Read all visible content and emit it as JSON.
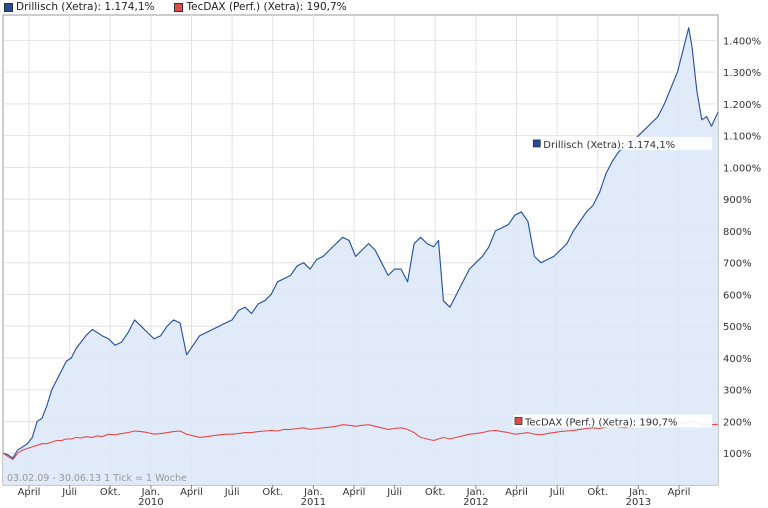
{
  "legend": [
    {
      "label": "Drillisch (Xetra): 1.174,1%",
      "color": "#1f4e9e"
    },
    {
      "label": "TecDAX (Perf.) (Xetra): 190,7%",
      "color": "#e34b4b"
    }
  ],
  "footer": {
    "range": "03.02.09 - 30.06.13",
    "tick": "1 Tick = 1 Woche"
  },
  "chart_data": {
    "type": "area",
    "title": "",
    "xlabel": "",
    "ylabel": "",
    "ylim": [
      0,
      1480
    ],
    "xlim": [
      2009.09,
      2013.49
    ],
    "yticks": [
      100,
      200,
      300,
      400,
      500,
      600,
      700,
      800,
      900,
      1000,
      1100,
      1200,
      1300,
      1400
    ],
    "ytick_labels": [
      "100%",
      "200%",
      "300%",
      "400%",
      "500%",
      "600%",
      "700%",
      "800%",
      "900%",
      "1.000%",
      "1.100%",
      "1.200%",
      "1.300%",
      "1.400%"
    ],
    "xticks": [
      {
        "x": 2009.25,
        "label": "April"
      },
      {
        "x": 2009.5,
        "label": "Juli"
      },
      {
        "x": 2009.75,
        "label": "Okt."
      },
      {
        "x": 2010.0,
        "label": "Jan.",
        "year": "2010"
      },
      {
        "x": 2010.25,
        "label": "April"
      },
      {
        "x": 2010.5,
        "label": "Juli"
      },
      {
        "x": 2010.75,
        "label": "Okt."
      },
      {
        "x": 2011.0,
        "label": "Jan.",
        "year": "2011"
      },
      {
        "x": 2011.25,
        "label": "April"
      },
      {
        "x": 2011.5,
        "label": "Juli"
      },
      {
        "x": 2011.75,
        "label": "Okt."
      },
      {
        "x": 2012.0,
        "label": "Jan.",
        "year": "2012"
      },
      {
        "x": 2012.25,
        "label": "April"
      },
      {
        "x": 2012.5,
        "label": "Juli"
      },
      {
        "x": 2012.75,
        "label": "Okt."
      },
      {
        "x": 2013.0,
        "label": "Jan.",
        "year": "2013"
      },
      {
        "x": 2013.25,
        "label": "April"
      }
    ],
    "grid": true,
    "series": [
      {
        "name": "Drillisch (Xetra)",
        "label": "Drillisch (Xetra): 1.174,1%",
        "color": "#1f4e9e",
        "fill": "#dde8f8",
        "x": [
          2009.09,
          2009.12,
          2009.15,
          2009.18,
          2009.21,
          2009.24,
          2009.27,
          2009.3,
          2009.33,
          2009.36,
          2009.39,
          2009.42,
          2009.45,
          2009.48,
          2009.51,
          2009.54,
          2009.57,
          2009.6,
          2009.64,
          2009.67,
          2009.7,
          2009.74,
          2009.78,
          2009.82,
          2009.86,
          2009.9,
          2009.94,
          2009.98,
          2010.02,
          2010.06,
          2010.1,
          2010.14,
          2010.18,
          2010.22,
          2010.26,
          2010.3,
          2010.34,
          2010.38,
          2010.42,
          2010.46,
          2010.5,
          2010.54,
          2010.58,
          2010.62,
          2010.66,
          2010.7,
          2010.74,
          2010.78,
          2010.82,
          2010.86,
          2010.9,
          2010.94,
          2010.98,
          2011.02,
          2011.06,
          2011.1,
          2011.14,
          2011.18,
          2011.22,
          2011.26,
          2011.3,
          2011.34,
          2011.38,
          2011.42,
          2011.46,
          2011.5,
          2011.54,
          2011.58,
          2011.62,
          2011.66,
          2011.7,
          2011.74,
          2011.77,
          2011.8,
          2011.84,
          2011.88,
          2011.92,
          2011.96,
          2012.0,
          2012.04,
          2012.08,
          2012.12,
          2012.16,
          2012.2,
          2012.24,
          2012.28,
          2012.32,
          2012.36,
          2012.4,
          2012.44,
          2012.48,
          2012.52,
          2012.56,
          2012.6,
          2012.64,
          2012.68,
          2012.72,
          2012.76,
          2012.8,
          2012.84,
          2012.88,
          2012.92,
          2012.96,
          2013.0,
          2013.04,
          2013.08,
          2013.12,
          2013.16,
          2013.2,
          2013.24,
          2013.28,
          2013.31,
          2013.33,
          2013.36,
          2013.39,
          2013.42,
          2013.45,
          2013.49
        ],
        "values": [
          100,
          95,
          85,
          110,
          120,
          130,
          150,
          200,
          210,
          250,
          300,
          330,
          360,
          390,
          400,
          430,
          450,
          470,
          490,
          480,
          470,
          460,
          440,
          450,
          480,
          520,
          500,
          480,
          460,
          470,
          500,
          520,
          510,
          410,
          440,
          470,
          480,
          490,
          500,
          510,
          520,
          550,
          560,
          540,
          570,
          580,
          600,
          640,
          650,
          660,
          690,
          700,
          680,
          710,
          720,
          740,
          760,
          780,
          770,
          720,
          740,
          760,
          740,
          700,
          660,
          680,
          680,
          640,
          760,
          780,
          760,
          750,
          770,
          580,
          560,
          600,
          640,
          680,
          700,
          720,
          750,
          800,
          810,
          820,
          850,
          860,
          830,
          720,
          700,
          710,
          720,
          740,
          760,
          800,
          830,
          860,
          880,
          920,
          980,
          1020,
          1050,
          1070,
          1080,
          1100,
          1120,
          1140,
          1160,
          1200,
          1250,
          1300,
          1380,
          1440,
          1380,
          1240,
          1150,
          1160,
          1130,
          1174
        ]
      },
      {
        "name": "TecDAX (Perf.) (Xetra)",
        "label": "TecDAX (Perf.) (Xetra): 190,7%",
        "color": "#e34b4b",
        "x": [
          2009.09,
          2009.12,
          2009.15,
          2009.18,
          2009.21,
          2009.24,
          2009.27,
          2009.3,
          2009.33,
          2009.36,
          2009.39,
          2009.42,
          2009.45,
          2009.48,
          2009.51,
          2009.54,
          2009.57,
          2009.6,
          2009.64,
          2009.67,
          2009.7,
          2009.74,
          2009.78,
          2009.82,
          2009.86,
          2009.9,
          2009.94,
          2009.98,
          2010.02,
          2010.06,
          2010.1,
          2010.14,
          2010.18,
          2010.22,
          2010.26,
          2010.3,
          2010.34,
          2010.38,
          2010.42,
          2010.46,
          2010.5,
          2010.54,
          2010.58,
          2010.62,
          2010.66,
          2010.7,
          2010.74,
          2010.78,
          2010.82,
          2010.86,
          2010.9,
          2010.94,
          2010.98,
          2011.02,
          2011.06,
          2011.1,
          2011.14,
          2011.18,
          2011.22,
          2011.26,
          2011.3,
          2011.34,
          2011.38,
          2011.42,
          2011.46,
          2011.5,
          2011.54,
          2011.58,
          2011.62,
          2011.66,
          2011.7,
          2011.74,
          2011.77,
          2011.8,
          2011.84,
          2011.88,
          2011.92,
          2011.96,
          2012.0,
          2012.04,
          2012.08,
          2012.12,
          2012.16,
          2012.2,
          2012.24,
          2012.28,
          2012.32,
          2012.36,
          2012.4,
          2012.44,
          2012.48,
          2012.52,
          2012.56,
          2012.6,
          2012.64,
          2012.68,
          2012.72,
          2012.76,
          2012.8,
          2012.84,
          2012.88,
          2012.92,
          2012.96,
          2013.0,
          2013.04,
          2013.08,
          2013.12,
          2013.16,
          2013.2,
          2013.24,
          2013.28,
          2013.31,
          2013.33,
          2013.36,
          2013.39,
          2013.42,
          2013.45,
          2013.49
        ],
        "values": [
          100,
          90,
          80,
          100,
          110,
          115,
          120,
          125,
          130,
          130,
          135,
          140,
          140,
          145,
          145,
          150,
          148,
          152,
          150,
          155,
          152,
          160,
          158,
          162,
          165,
          170,
          168,
          165,
          160,
          162,
          165,
          168,
          170,
          160,
          155,
          150,
          152,
          155,
          158,
          160,
          160,
          162,
          165,
          165,
          168,
          170,
          172,
          170,
          175,
          175,
          178,
          180,
          175,
          178,
          180,
          182,
          185,
          190,
          188,
          185,
          188,
          190,
          185,
          180,
          175,
          178,
          180,
          175,
          165,
          150,
          145,
          140,
          145,
          150,
          145,
          150,
          155,
          160,
          162,
          165,
          170,
          172,
          168,
          165,
          160,
          162,
          165,
          160,
          158,
          162,
          165,
          168,
          170,
          172,
          175,
          178,
          180,
          178,
          182,
          185,
          182,
          180,
          185,
          188,
          190,
          192,
          195,
          195,
          198,
          200,
          195,
          200,
          198,
          195,
          190,
          188,
          190,
          191
        ]
      }
    ],
    "annotations": [
      {
        "text": "Drillisch (Xetra): 1.174,1%",
        "x": 2013.49,
        "y": 1074,
        "color": "#1f4e9e"
      },
      {
        "text": "TecDAX (Perf.) (Xetra): 190,7%",
        "x": 2013.49,
        "y": 200,
        "color": "#e34b4b"
      }
    ]
  }
}
